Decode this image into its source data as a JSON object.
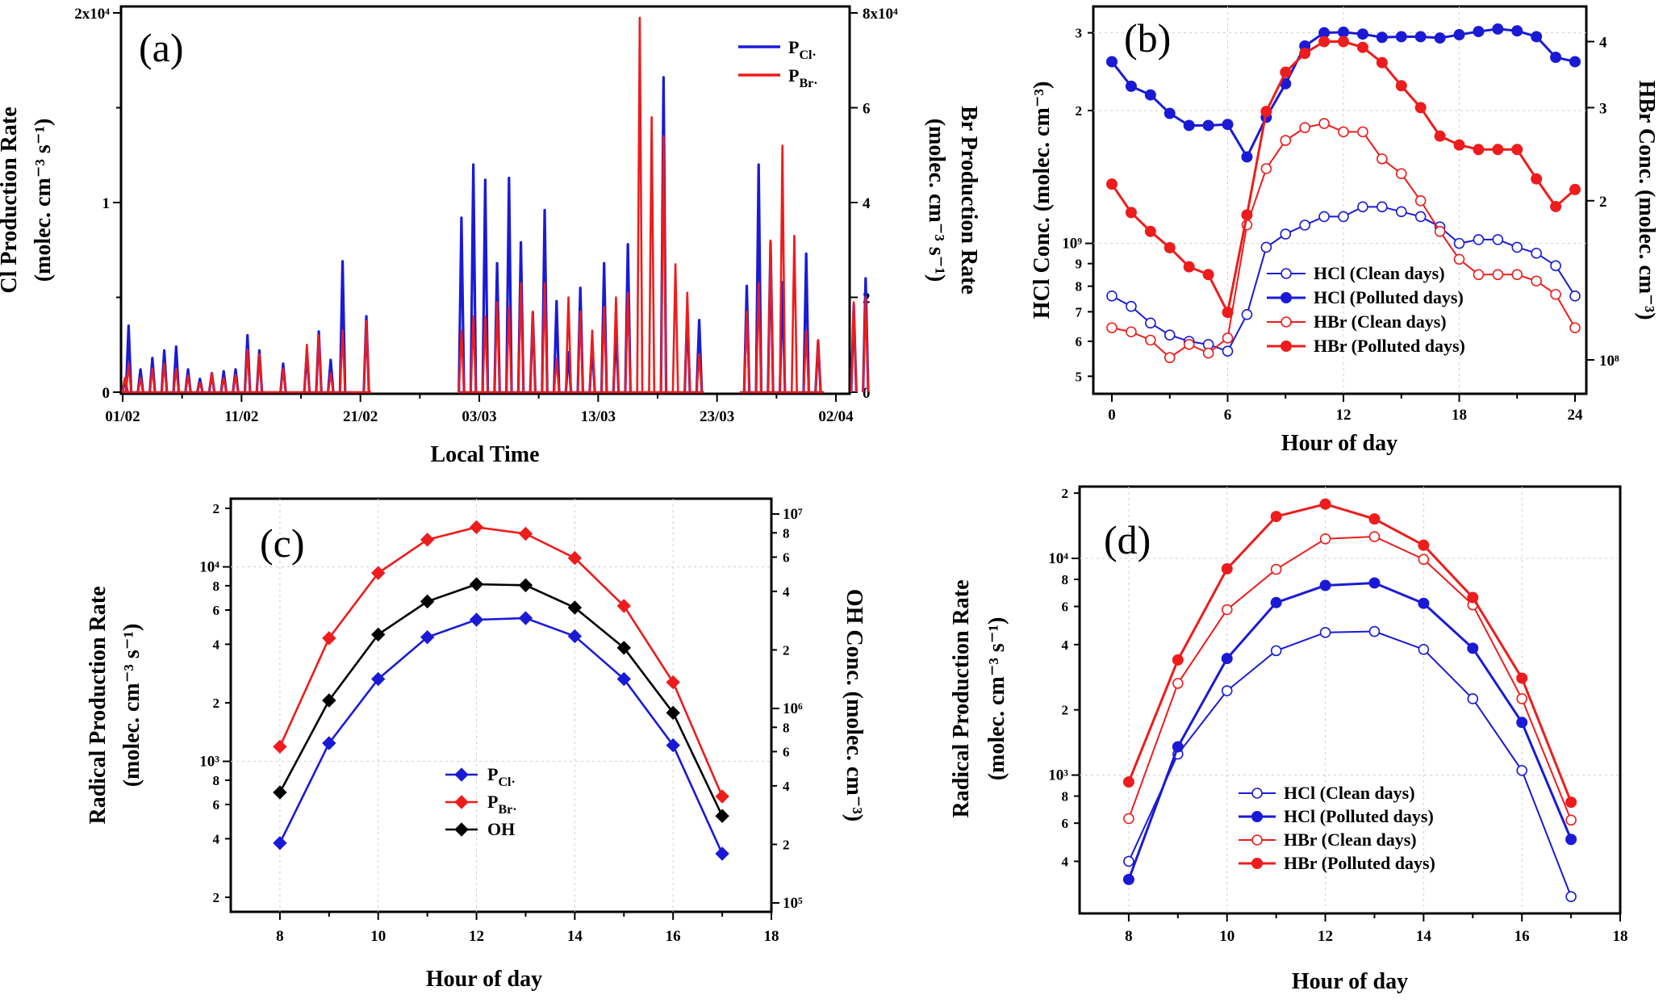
{
  "colors": {
    "blue": "#1a1ad6",
    "red": "#ee1c1c",
    "black": "#000000"
  },
  "panels": {
    "a": {
      "label": "(a)",
      "ylabel_left_1": "Cl Production Rate",
      "ylabel_left_2": "(molec. cm⁻³ s⁻¹)",
      "ylabel_right_1": "Br Production Rate",
      "ylabel_right_2": "(molec. cm⁻³ s⁻¹)",
      "xlabel": "Local Time",
      "yticks_left": [
        "0",
        "1",
        "2x10⁴"
      ],
      "yticks_right": [
        "0",
        "2",
        "4",
        "6",
        "8x10⁴"
      ],
      "xticks": [
        "01/02",
        "11/02",
        "21/02",
        "03/03",
        "13/03",
        "23/03",
        "02/04"
      ],
      "legend": [
        "P_Cl·",
        "P_Br·"
      ]
    },
    "b": {
      "label": "(b)",
      "ylabel_left": "HCl Conc. (molec. cm⁻³)",
      "ylabel_right": "HBr Conc. (molec. cm⁻³)",
      "xlabel": "Hour of day",
      "xticks": [
        "0",
        "6",
        "12",
        "18",
        "24"
      ],
      "yticks_left": [
        "5",
        "6",
        "7",
        "8",
        "9",
        "10⁹",
        "2",
        "3"
      ],
      "yticks_right": [
        "10⁸",
        "2",
        "3",
        "4"
      ],
      "legend": [
        "HCl (Clean days)",
        "HCl (Polluted days)",
        "HBr (Clean days)",
        "HBr (Polluted days)"
      ]
    },
    "c": {
      "label": "(c)",
      "ylabel_left_1": "Radical Production Rate",
      "ylabel_left_2": "(molec. cm⁻³ s⁻¹)",
      "ylabel_right": "OH Conc.  (molec. cm⁻³)",
      "xlabel": "Hour of day",
      "xticks": [
        "8",
        "10",
        "12",
        "14",
        "16",
        "18"
      ],
      "yticks_left": [
        "2",
        "4",
        "6",
        "8",
        "10³",
        "2",
        "4",
        "6",
        "8",
        "10⁴",
        "2"
      ],
      "yticks_right": [
        "10⁵",
        "2",
        "4",
        "6",
        "8",
        "10⁶",
        "2",
        "4",
        "6",
        "8",
        "10⁷"
      ],
      "legend": [
        "P_Cl·",
        "P_Br·",
        "OH"
      ]
    },
    "d": {
      "label": "(d)",
      "ylabel_1": "Radical Production Rate",
      "ylabel_2": "(molec. cm⁻³ s⁻¹)",
      "xlabel": "Hour of day",
      "xticks": [
        "8",
        "10",
        "12",
        "14",
        "16",
        "18"
      ],
      "yticks": [
        "4",
        "6",
        "8",
        "10³",
        "2",
        "4",
        "6",
        "8",
        "10⁴",
        "2"
      ],
      "legend": [
        "HCl (Clean days)",
        "HCl (Polluted days)",
        "HBr (Clean days)",
        "HBr (Polluted days)"
      ]
    }
  },
  "chart_data": [
    {
      "panel": "a",
      "type": "line",
      "xlabel": "Local Time",
      "ylabel": "Cl Production Rate (molec. cm-3 s-1)",
      "y2label": "Br Production Rate (molec. cm-3 s-1)",
      "x_range": [
        "2019-02-01",
        "2019-04-02"
      ],
      "ylim": [
        0,
        20000
      ],
      "y2lim": [
        0,
        80000
      ],
      "grid": false,
      "legend_position": "top-right",
      "day_offsets": [
        0.2,
        0.5,
        1.5,
        2.5,
        3.5,
        4.5,
        5.5,
        6.5,
        7.5,
        8.5,
        9.5,
        10.5,
        11.5,
        13.5,
        15.5,
        16.5,
        17.5,
        18.5,
        20.5,
        28.5,
        29.5,
        30.5,
        31.5,
        32.5,
        33.5,
        34.5,
        35.5,
        36.5,
        37.5,
        38.5,
        39.5,
        40.5,
        41.5,
        42.5,
        43.5,
        44.5,
        45.5,
        46.5,
        47.5,
        48.5,
        52.5,
        53.5,
        54.5,
        55.5,
        56.5,
        57.5,
        58.5,
        61.5,
        62.5,
        63.5,
        64.5,
        65.5
      ],
      "series": [
        {
          "name": "P_Cl·",
          "axis": "left",
          "values": [
            700,
            3500,
            1200,
            1800,
            2200,
            2400,
            1200,
            700,
            1000,
            1100,
            1200,
            3000,
            2200,
            1500,
            2200,
            3200,
            1700,
            6900,
            4000,
            9200,
            12000,
            11200,
            6800,
            11300,
            7900,
            4200,
            9600,
            4800,
            2100,
            5500,
            2600,
            6800,
            3400,
            7800,
            0,
            0,
            16600,
            0,
            4400,
            3800,
            5600,
            12000,
            7900,
            5800,
            0,
            7300,
            2700,
            4600,
            6000,
            0,
            0,
            0
          ]
        },
        {
          "name": "P_Br·",
          "axis": "right",
          "values": [
            3000,
            6000,
            3000,
            5000,
            6000,
            5000,
            3500,
            2000,
            4000,
            3000,
            3600,
            9000,
            8000,
            5000,
            10000,
            12000,
            4000,
            13000,
            15000,
            13000,
            16000,
            16000,
            19000,
            18000,
            23000,
            17000,
            23000,
            7000,
            20000,
            17000,
            13000,
            18000,
            20000,
            21000,
            79000,
            58000,
            54000,
            27000,
            21000,
            8000,
            17000,
            23000,
            32000,
            52000,
            33000,
            13000,
            11000,
            19000,
            20000,
            0,
            0,
            0
          ]
        }
      ]
    },
    {
      "panel": "b",
      "type": "line",
      "xlabel": "Hour of day",
      "ylabel": "HCl Conc. (molec. cm-3)",
      "y2label": "HBr Conc. (molec. cm-3)",
      "x": [
        0,
        1,
        2,
        3,
        4,
        5,
        6,
        7,
        8,
        9,
        10,
        11,
        12,
        13,
        14,
        15,
        16,
        17,
        18,
        19,
        20,
        21,
        22,
        23,
        24
      ],
      "ylim": [
        480000000.0,
        3300000000.0
      ],
      "y2lim": [
        90000000.0,
        450000000.0
      ],
      "y_scale": "log",
      "y2_scale": "log",
      "grid": true,
      "legend_position": "bottom-right",
      "series": [
        {
          "name": "HCl (Clean days)",
          "axis": "left",
          "marker": "open-circle",
          "values": [
            760000000.0,
            720000000.0,
            660000000.0,
            620000000.0,
            600000000.0,
            590000000.0,
            570000000.0,
            690000000.0,
            980000000.0,
            1050000000.0,
            1100000000.0,
            1150000000.0,
            1150000000.0,
            1210000000.0,
            1210000000.0,
            1180000000.0,
            1150000000.0,
            1090000000.0,
            1000000000.0,
            1020000000.0,
            1020000000.0,
            980000000.0,
            950000000.0,
            890000000.0,
            760000000.0
          ]
        },
        {
          "name": "HCl (Polluted days)",
          "axis": "left",
          "marker": "filled-circle",
          "values": [
            2580000000.0,
            2270000000.0,
            2170000000.0,
            1970000000.0,
            1850000000.0,
            1850000000.0,
            1860000000.0,
            1570000000.0,
            1930000000.0,
            2300000000.0,
            2800000000.0,
            3000000000.0,
            3010000000.0,
            2980000000.0,
            2930000000.0,
            2940000000.0,
            2940000000.0,
            2920000000.0,
            2970000000.0,
            3020000000.0,
            3060000000.0,
            3030000000.0,
            2940000000.0,
            2640000000.0,
            2580000000.0
          ]
        },
        {
          "name": "HBr (Clean days)",
          "axis": "right",
          "marker": "open-circle",
          "values": [
            115000000.0,
            113000000.0,
            109000000.0,
            101000000.0,
            107000000.0,
            103000000.0,
            110000000.0,
            180000000.0,
            230000000.0,
            260000000.0,
            275000000.0,
            280000000.0,
            270000000.0,
            270000000.0,
            240000000.0,
            225000000.0,
            200000000.0,
            175000000.0,
            155000000.0,
            145000000.0,
            145000000.0,
            145000000.0,
            141000000.0,
            133000000.0,
            115000000.0
          ]
        },
        {
          "name": "HBr (Polluted days)",
          "axis": "right",
          "marker": "filled-circle",
          "values": [
            215000000.0,
            190000000.0,
            175000000.0,
            163000000.0,
            150000000.0,
            145000000.0,
            123000000.0,
            188000000.0,
            295000000.0,
            350000000.0,
            380000000.0,
            400000000.0,
            400000000.0,
            390000000.0,
            365000000.0,
            330000000.0,
            300000000.0,
            265000000.0,
            255000000.0,
            250000000.0,
            250000000.0,
            250000000.0,
            220000000.0,
            195000000.0,
            210000000.0
          ]
        }
      ]
    },
    {
      "panel": "c",
      "type": "line",
      "xlabel": "Hour of day",
      "ylabel": "Radical Production Rate (molec. cm-3 s-1)",
      "y2label": "OH Conc. (molec. cm-3)",
      "x": [
        8,
        9,
        10,
        11,
        12,
        13,
        14,
        15,
        16,
        17
      ],
      "xlim": [
        7,
        18
      ],
      "ylim": [
        180,
        22000
      ],
      "y2lim": [
        90000,
        11000000
      ],
      "y_scale": "log",
      "y2_scale": "log",
      "grid": true,
      "legend_position": "bottom-center",
      "series": [
        {
          "name": "P_Cl·",
          "axis": "left",
          "marker": "filled-diamond",
          "values": [
            380,
            1240,
            2650,
            4350,
            5350,
            5450,
            4400,
            2650,
            1210,
            335
          ]
        },
        {
          "name": "P_Br·",
          "axis": "left",
          "marker": "filled-diamond",
          "values": [
            1190,
            4300,
            9300,
            13800,
            16000,
            14800,
            11100,
            6300,
            2550,
            660
          ]
        },
        {
          "name": "OH",
          "axis": "right",
          "marker": "filled-diamond",
          "values": [
            370000,
            1100000,
            2400000,
            3550000,
            4350000,
            4300000,
            3300000,
            2050000,
            950000,
            280000
          ]
        }
      ]
    },
    {
      "panel": "d",
      "type": "line",
      "xlabel": "Hour of day",
      "ylabel": "Radical Production Rate (molec. cm-3 s-1)",
      "x": [
        8,
        9,
        10,
        11,
        12,
        13,
        14,
        15,
        16,
        17
      ],
      "xlim": [
        7,
        18
      ],
      "ylim": [
        230,
        22000
      ],
      "y_scale": "log",
      "grid": true,
      "legend_position": "bottom-left",
      "series": [
        {
          "name": "HCl (Clean days)",
          "marker": "open-circle",
          "values": [
            400,
            1250,
            2450,
            3750,
            4550,
            4600,
            3800,
            2250,
            1050,
            275
          ]
        },
        {
          "name": "HCl (Polluted days)",
          "marker": "filled-circle",
          "values": [
            330,
            1350,
            3450,
            6250,
            7500,
            7700,
            6200,
            3850,
            1750,
            505
          ]
        },
        {
          "name": "HBr (Clean days)",
          "marker": "open-circle",
          "values": [
            630,
            2650,
            5800,
            8900,
            12300,
            12600,
            9900,
            6100,
            2250,
            620
          ]
        },
        {
          "name": "HBr (Polluted days)",
          "marker": "filled-circle",
          "values": [
            930,
            3400,
            8950,
            15600,
            17800,
            15200,
            11500,
            6600,
            2800,
            750
          ]
        }
      ]
    }
  ]
}
